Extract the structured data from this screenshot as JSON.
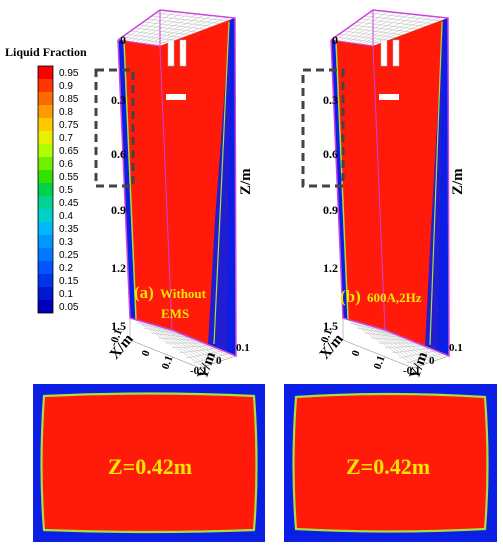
{
  "legend": {
    "title": "Liquid Fraction",
    "labels": [
      "0.95",
      "0.9",
      "0.85",
      "0.8",
      "0.75",
      "0.7",
      "0.65",
      "0.6",
      "0.55",
      "0.5",
      "0.45",
      "0.4",
      "0.35",
      "0.3",
      "0.25",
      "0.2",
      "0.15",
      "0.1",
      "0.05"
    ],
    "colors": [
      "#ff0000",
      "#ff3500",
      "#ff6a00",
      "#ff9a00",
      "#ffc800",
      "#e8ef00",
      "#b0ff00",
      "#70f000",
      "#33e000",
      "#00d04a",
      "#00d490",
      "#00d0c8",
      "#00b8ff",
      "#0098ff",
      "#0078ff",
      "#0055ff",
      "#0034e8",
      "#0018d0",
      "#0000b8"
    ]
  },
  "panels": [
    {
      "id": "a",
      "label_letter": "(a)",
      "label_text_1": "Without",
      "label_text_2": "EMS",
      "z_ticks": [
        "0",
        "0.3",
        "0.6",
        "0.9",
        "1.2",
        "1.5"
      ],
      "z_axis_label": "Z/m",
      "x_axis_label": "X/m",
      "y_axis_label": "Y/m",
      "x_ticks": [
        "-0.1",
        "0",
        "0.1"
      ],
      "y_ticks": [
        "0.1",
        "0",
        "-0.1"
      ],
      "section_label": "Z=0.42m"
    },
    {
      "id": "b",
      "label_letter": "(b)",
      "label_text_1": "600A,2Hz",
      "label_text_2": "",
      "z_ticks": [
        "0",
        "0.3",
        "0.6",
        "0.9",
        "1.2",
        "1.5"
      ],
      "z_axis_label": "Z/m",
      "x_axis_label": "X/m",
      "y_axis_label": "Y/m",
      "x_ticks": [
        "-0.1",
        "0",
        "0.1"
      ],
      "y_ticks": [
        "0.1",
        "0",
        "-0.1"
      ],
      "section_label": "Z=0.42m"
    }
  ],
  "colors": {
    "liquid": "#ff1a0a",
    "solid": "#0a1ee6",
    "outline": "#cc44dd",
    "mushy": "#a8e03c",
    "label_yellow": "#f5e600"
  }
}
